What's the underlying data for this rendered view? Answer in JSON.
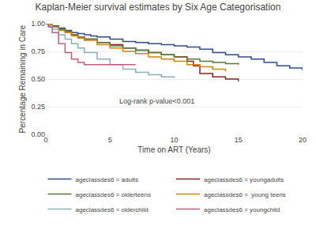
{
  "chart_data": {
    "type": "line",
    "line_style": "step",
    "title": "Kaplan-Meier survival estimates by Six Age Categorisation",
    "x_label": "Time on ART (Years)",
    "y_label": "Percentage Remaining in Care",
    "annotation": "Log-rank p-value<0.001",
    "xlim": [
      0,
      20
    ],
    "ylim": [
      0,
      1.0
    ],
    "xticks": [
      0,
      5,
      10,
      15,
      20
    ],
    "yticks": [
      {
        "value": 0.0,
        "label": "0.00"
      },
      0.25,
      {
        "value": 0.5,
        "label": "0.50"
      },
      0.75,
      {
        "value": 1.0,
        "label": "1.00"
      }
    ],
    "grid": true,
    "legend": "bottom",
    "series": [
      {
        "name": "ageclassdes6 = adults",
        "color": "#2e4d8a",
        "x": [
          0,
          0.2,
          0.5,
          1,
          1.5,
          2,
          2.5,
          3,
          3.5,
          4,
          5,
          6,
          7,
          8,
          9,
          10,
          11,
          12,
          13,
          14,
          15,
          16,
          17,
          18,
          19,
          20
        ],
        "values": [
          1.0,
          0.99,
          0.98,
          0.96,
          0.94,
          0.92,
          0.91,
          0.9,
          0.89,
          0.88,
          0.86,
          0.84,
          0.83,
          0.82,
          0.81,
          0.8,
          0.79,
          0.77,
          0.74,
          0.72,
          0.7,
          0.68,
          0.65,
          0.62,
          0.6,
          0.58
        ]
      },
      {
        "name": "ageclassdes6 = youngadults",
        "color": "#8b2020",
        "x": [
          0,
          0.2,
          0.5,
          1,
          1.5,
          2,
          2.5,
          3,
          4,
          5,
          6,
          7,
          8,
          9,
          10,
          11,
          11.5,
          12,
          13,
          14,
          15
        ],
        "values": [
          1.0,
          0.99,
          0.97,
          0.95,
          0.93,
          0.9,
          0.88,
          0.86,
          0.83,
          0.81,
          0.78,
          0.76,
          0.74,
          0.72,
          0.7,
          0.66,
          0.62,
          0.55,
          0.52,
          0.5,
          0.48
        ]
      },
      {
        "name": "ageclassdes6 = olderteens",
        "color": "#557a3a",
        "x": [
          0,
          0.2,
          0.5,
          1,
          1.5,
          2,
          2.5,
          3,
          4,
          5,
          6,
          7,
          8,
          9,
          10,
          11,
          12,
          13,
          14,
          15
        ],
        "values": [
          1.0,
          0.99,
          0.97,
          0.95,
          0.93,
          0.9,
          0.88,
          0.86,
          0.83,
          0.8,
          0.78,
          0.76,
          0.74,
          0.72,
          0.7,
          0.68,
          0.66,
          0.65,
          0.64,
          0.63
        ]
      },
      {
        "name": "ageclassdes6 =  young teens",
        "color": "#d4820a",
        "x": [
          0,
          0.2,
          0.5,
          1,
          1.5,
          2,
          2.5,
          3,
          4,
          5,
          6,
          7,
          8,
          9,
          10,
          11,
          12,
          13,
          14
        ],
        "values": [
          1.0,
          0.99,
          0.97,
          0.94,
          0.92,
          0.89,
          0.87,
          0.85,
          0.81,
          0.78,
          0.75,
          0.73,
          0.7,
          0.68,
          0.66,
          0.63,
          0.61,
          0.59,
          0.57
        ]
      },
      {
        "name": "ageclassdes6 = olderchild",
        "color": "#8ab0b8",
        "x": [
          0,
          0.2,
          0.5,
          1,
          1.5,
          2,
          2.5,
          3,
          4,
          5,
          6,
          7,
          8,
          9,
          10
        ],
        "values": [
          1.0,
          0.98,
          0.95,
          0.9,
          0.86,
          0.82,
          0.78,
          0.74,
          0.68,
          0.63,
          0.59,
          0.56,
          0.54,
          0.52,
          0.51
        ]
      },
      {
        "name": "ageclassdes6 = youngchild",
        "color": "#c06080",
        "x": [
          0,
          0.2,
          0.5,
          1,
          1.5,
          2,
          2.5,
          3,
          3.5,
          4,
          4.5,
          5,
          6,
          7
        ],
        "values": [
          1.0,
          0.97,
          0.92,
          0.82,
          0.74,
          0.68,
          0.65,
          0.63,
          0.63,
          0.63,
          0.63,
          0.63,
          0.63,
          0.63
        ]
      }
    ]
  }
}
